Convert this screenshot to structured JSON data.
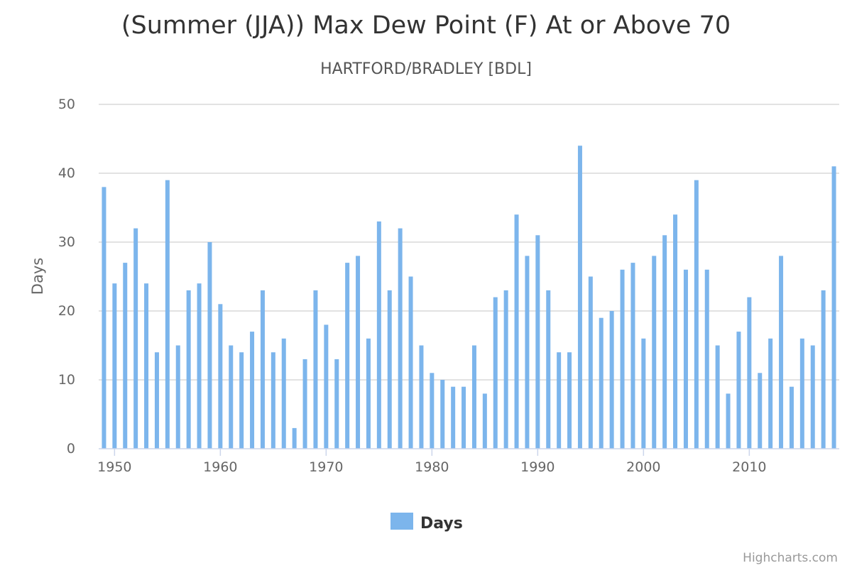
{
  "chart_data": {
    "type": "bar",
    "title": "(Summer (JJA)) Max Dew Point (F) At or Above 70",
    "subtitle": "HARTFORD/BRADLEY [BDL]",
    "ylabel": "Days",
    "xlabel": "",
    "ylim": [
      0,
      50
    ],
    "yticks": [
      0,
      10,
      20,
      30,
      40,
      50
    ],
    "xticks": [
      1950,
      1960,
      1970,
      1980,
      1990,
      2000,
      2010
    ],
    "grid": true,
    "legend_position": "bottom-center",
    "bar_color": "#7cb5ec",
    "series": [
      {
        "name": "Days",
        "x": [
          1949,
          1950,
          1951,
          1952,
          1953,
          1954,
          1955,
          1956,
          1957,
          1958,
          1959,
          1960,
          1961,
          1962,
          1963,
          1964,
          1965,
          1966,
          1967,
          1968,
          1969,
          1970,
          1971,
          1972,
          1973,
          1974,
          1975,
          1976,
          1977,
          1978,
          1979,
          1980,
          1981,
          1982,
          1983,
          1984,
          1985,
          1986,
          1987,
          1988,
          1989,
          1990,
          1991,
          1992,
          1993,
          1994,
          1995,
          1996,
          1997,
          1998,
          1999,
          2000,
          2001,
          2002,
          2003,
          2004,
          2005,
          2006,
          2007,
          2008,
          2009,
          2010,
          2011,
          2012,
          2013,
          2014,
          2015,
          2016,
          2017,
          2018
        ],
        "values": [
          38,
          24,
          27,
          32,
          24,
          14,
          39,
          15,
          23,
          24,
          30,
          21,
          15,
          14,
          17,
          23,
          14,
          16,
          3,
          13,
          23,
          18,
          13,
          27,
          28,
          16,
          33,
          23,
          32,
          25,
          15,
          11,
          10,
          9,
          9,
          15,
          8,
          22,
          23,
          34,
          28,
          31,
          23,
          14,
          14,
          44,
          25,
          19,
          20,
          26,
          27,
          16,
          28,
          31,
          34,
          26,
          39,
          26,
          15,
          8,
          17,
          22,
          11,
          16,
          28,
          9,
          16,
          15,
          23,
          41
        ]
      }
    ]
  },
  "credits": "Highcharts.com"
}
